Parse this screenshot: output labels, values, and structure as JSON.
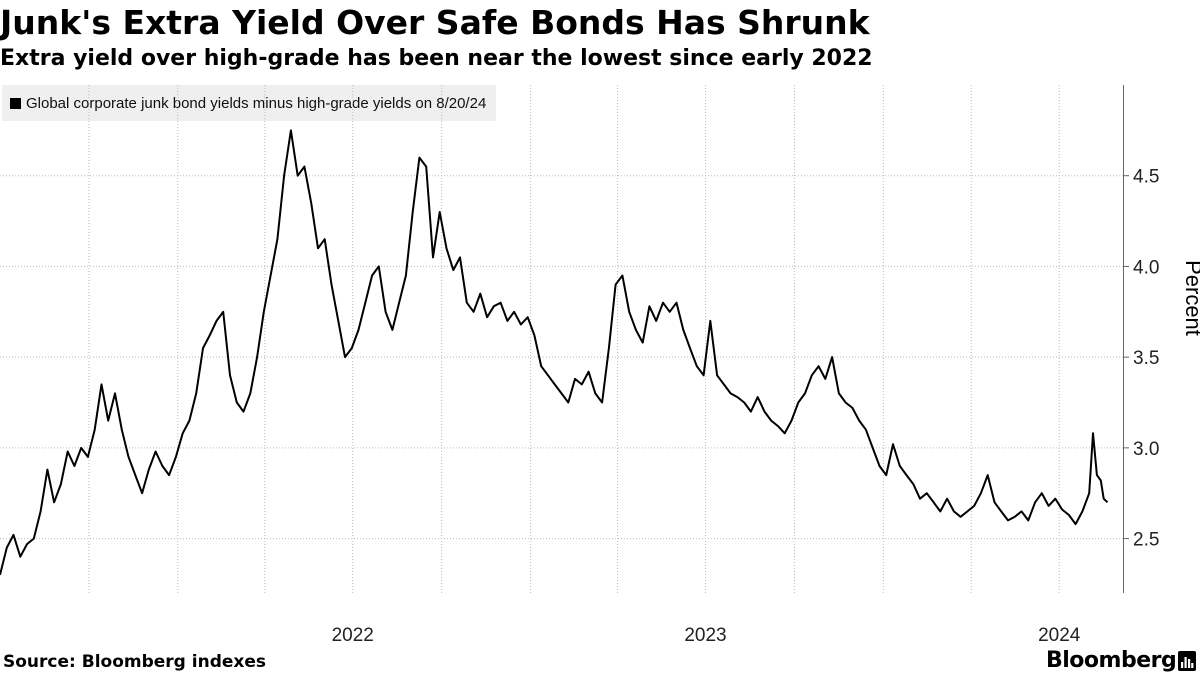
{
  "title": "Junk's Extra Yield Over Safe Bonds Has Shrunk",
  "subtitle": "Extra yield over high-grade has been near the lowest since early 2022",
  "legend_label": "Global corporate junk bond yields minus high-grade yields on 8/20/24",
  "source": "Source: Bloomberg indexes",
  "brand": "Bloomberg",
  "colors": {
    "line": "#000000",
    "grid": "#bbbbbb",
    "legend_bg": "#efefef"
  },
  "chart_data": {
    "type": "line",
    "title": "Junk's Extra Yield Over Safe Bonds Has Shrunk",
    "subtitle": "Extra yield over high-grade has been near the lowest since early 2022",
    "xlabel": "",
    "ylabel": "Percent",
    "ylim": [
      2.2,
      5.0
    ],
    "yticks": [
      2.5,
      3.0,
      3.5,
      4.0,
      4.5
    ],
    "ytick_labels": [
      "2.5",
      "3.0",
      "3.5",
      "4.0",
      "4.5"
    ],
    "xlim": [
      "2021-07-01",
      "2024-09-05"
    ],
    "xtick_labels": [
      "2022",
      "2023",
      "2024"
    ],
    "xtick_centers": [
      "2022-07-01",
      "2023-07-01",
      "2024-07-01"
    ],
    "quarter_gridlines": [
      "2021-10-01",
      "2022-01-01",
      "2022-04-01",
      "2022-07-01",
      "2022-10-01",
      "2023-01-01",
      "2023-04-01",
      "2023-07-01",
      "2023-10-01",
      "2024-01-01",
      "2024-04-01",
      "2024-07-01"
    ],
    "grid": true,
    "legend": "top-left",
    "series": [
      {
        "name": "Global corporate junk bond yields minus high-grade yields on 8/20/24",
        "points": [
          [
            "2021-07-01",
            2.3
          ],
          [
            "2021-07-08",
            2.45
          ],
          [
            "2021-07-15",
            2.52
          ],
          [
            "2021-07-22",
            2.4
          ],
          [
            "2021-07-29",
            2.47
          ],
          [
            "2021-08-05",
            2.5
          ],
          [
            "2021-08-12",
            2.65
          ],
          [
            "2021-08-19",
            2.88
          ],
          [
            "2021-08-26",
            2.7
          ],
          [
            "2021-09-02",
            2.8
          ],
          [
            "2021-09-09",
            2.98
          ],
          [
            "2021-09-16",
            2.9
          ],
          [
            "2021-09-23",
            3.0
          ],
          [
            "2021-09-30",
            2.95
          ],
          [
            "2021-10-07",
            3.1
          ],
          [
            "2021-10-14",
            3.35
          ],
          [
            "2021-10-21",
            3.15
          ],
          [
            "2021-10-28",
            3.3
          ],
          [
            "2021-11-04",
            3.1
          ],
          [
            "2021-11-11",
            2.95
          ],
          [
            "2021-11-18",
            2.85
          ],
          [
            "2021-11-25",
            2.75
          ],
          [
            "2021-12-02",
            2.88
          ],
          [
            "2021-12-09",
            2.98
          ],
          [
            "2021-12-16",
            2.9
          ],
          [
            "2021-12-23",
            2.85
          ],
          [
            "2021-12-30",
            2.95
          ],
          [
            "2022-01-06",
            3.08
          ],
          [
            "2022-01-13",
            3.15
          ],
          [
            "2022-01-20",
            3.3
          ],
          [
            "2022-01-27",
            3.55
          ],
          [
            "2022-02-03",
            3.62
          ],
          [
            "2022-02-10",
            3.7
          ],
          [
            "2022-02-17",
            3.75
          ],
          [
            "2022-02-24",
            3.4
          ],
          [
            "2022-03-03",
            3.25
          ],
          [
            "2022-03-10",
            3.2
          ],
          [
            "2022-03-17",
            3.3
          ],
          [
            "2022-03-24",
            3.5
          ],
          [
            "2022-03-31",
            3.75
          ],
          [
            "2022-04-07",
            3.95
          ],
          [
            "2022-04-14",
            4.15
          ],
          [
            "2022-04-21",
            4.5
          ],
          [
            "2022-04-28",
            4.75
          ],
          [
            "2022-05-05",
            4.5
          ],
          [
            "2022-05-12",
            4.55
          ],
          [
            "2022-05-19",
            4.35
          ],
          [
            "2022-05-26",
            4.1
          ],
          [
            "2022-06-02",
            4.15
          ],
          [
            "2022-06-09",
            3.9
          ],
          [
            "2022-06-16",
            3.7
          ],
          [
            "2022-06-23",
            3.5
          ],
          [
            "2022-06-30",
            3.55
          ],
          [
            "2022-07-07",
            3.65
          ],
          [
            "2022-07-14",
            3.8
          ],
          [
            "2022-07-21",
            3.95
          ],
          [
            "2022-07-28",
            4.0
          ],
          [
            "2022-08-04",
            3.75
          ],
          [
            "2022-08-11",
            3.65
          ],
          [
            "2022-08-18",
            3.8
          ],
          [
            "2022-08-25",
            3.95
          ],
          [
            "2022-09-01",
            4.3
          ],
          [
            "2022-09-08",
            4.6
          ],
          [
            "2022-09-15",
            4.55
          ],
          [
            "2022-09-22",
            4.05
          ],
          [
            "2022-09-29",
            4.3
          ],
          [
            "2022-10-06",
            4.1
          ],
          [
            "2022-10-13",
            3.98
          ],
          [
            "2022-10-20",
            4.05
          ],
          [
            "2022-10-27",
            3.8
          ],
          [
            "2022-11-03",
            3.75
          ],
          [
            "2022-11-10",
            3.85
          ],
          [
            "2022-11-17",
            3.72
          ],
          [
            "2022-11-24",
            3.78
          ],
          [
            "2022-12-01",
            3.8
          ],
          [
            "2022-12-08",
            3.7
          ],
          [
            "2022-12-15",
            3.75
          ],
          [
            "2022-12-22",
            3.68
          ],
          [
            "2022-12-29",
            3.72
          ],
          [
            "2023-01-05",
            3.62
          ],
          [
            "2023-01-12",
            3.45
          ],
          [
            "2023-01-19",
            3.4
          ],
          [
            "2023-01-26",
            3.35
          ],
          [
            "2023-02-02",
            3.3
          ],
          [
            "2023-02-09",
            3.25
          ],
          [
            "2023-02-16",
            3.38
          ],
          [
            "2023-02-23",
            3.35
          ],
          [
            "2023-03-02",
            3.42
          ],
          [
            "2023-03-09",
            3.3
          ],
          [
            "2023-03-16",
            3.25
          ],
          [
            "2023-03-23",
            3.55
          ],
          [
            "2023-03-30",
            3.9
          ],
          [
            "2023-04-06",
            3.95
          ],
          [
            "2023-04-13",
            3.75
          ],
          [
            "2023-04-20",
            3.65
          ],
          [
            "2023-04-27",
            3.58
          ],
          [
            "2023-05-04",
            3.78
          ],
          [
            "2023-05-11",
            3.7
          ],
          [
            "2023-05-18",
            3.8
          ],
          [
            "2023-05-25",
            3.75
          ],
          [
            "2023-06-01",
            3.8
          ],
          [
            "2023-06-08",
            3.65
          ],
          [
            "2023-06-15",
            3.55
          ],
          [
            "2023-06-22",
            3.45
          ],
          [
            "2023-06-29",
            3.4
          ],
          [
            "2023-07-06",
            3.7
          ],
          [
            "2023-07-13",
            3.4
          ],
          [
            "2023-07-20",
            3.35
          ],
          [
            "2023-07-27",
            3.3
          ],
          [
            "2023-08-03",
            3.28
          ],
          [
            "2023-08-10",
            3.25
          ],
          [
            "2023-08-17",
            3.2
          ],
          [
            "2023-08-24",
            3.28
          ],
          [
            "2023-08-31",
            3.2
          ],
          [
            "2023-09-07",
            3.15
          ],
          [
            "2023-09-14",
            3.12
          ],
          [
            "2023-09-21",
            3.08
          ],
          [
            "2023-09-28",
            3.15
          ],
          [
            "2023-10-05",
            3.25
          ],
          [
            "2023-10-12",
            3.3
          ],
          [
            "2023-10-19",
            3.4
          ],
          [
            "2023-10-26",
            3.45
          ],
          [
            "2023-11-02",
            3.38
          ],
          [
            "2023-11-09",
            3.5
          ],
          [
            "2023-11-16",
            3.3
          ],
          [
            "2023-11-23",
            3.25
          ],
          [
            "2023-11-30",
            3.22
          ],
          [
            "2023-12-07",
            3.15
          ],
          [
            "2023-12-14",
            3.1
          ],
          [
            "2023-12-21",
            3.0
          ],
          [
            "2023-12-28",
            2.9
          ],
          [
            "2024-01-04",
            2.85
          ],
          [
            "2024-01-11",
            3.02
          ],
          [
            "2024-01-18",
            2.9
          ],
          [
            "2024-01-25",
            2.85
          ],
          [
            "2024-02-01",
            2.8
          ],
          [
            "2024-02-08",
            2.72
          ],
          [
            "2024-02-15",
            2.75
          ],
          [
            "2024-02-22",
            2.7
          ],
          [
            "2024-02-29",
            2.65
          ],
          [
            "2024-03-07",
            2.72
          ],
          [
            "2024-03-14",
            2.65
          ],
          [
            "2024-03-21",
            2.62
          ],
          [
            "2024-03-28",
            2.65
          ],
          [
            "2024-04-04",
            2.68
          ],
          [
            "2024-04-11",
            2.75
          ],
          [
            "2024-04-18",
            2.85
          ],
          [
            "2024-04-25",
            2.7
          ],
          [
            "2024-05-02",
            2.65
          ],
          [
            "2024-05-09",
            2.6
          ],
          [
            "2024-05-16",
            2.62
          ],
          [
            "2024-05-23",
            2.65
          ],
          [
            "2024-05-30",
            2.6
          ],
          [
            "2024-06-06",
            2.7
          ],
          [
            "2024-06-13",
            2.75
          ],
          [
            "2024-06-20",
            2.68
          ],
          [
            "2024-06-27",
            2.72
          ],
          [
            "2024-07-04",
            2.66
          ],
          [
            "2024-07-11",
            2.63
          ],
          [
            "2024-07-18",
            2.58
          ],
          [
            "2024-07-25",
            2.65
          ],
          [
            "2024-08-01",
            2.75
          ],
          [
            "2024-08-05",
            3.08
          ],
          [
            "2024-08-09",
            2.85
          ],
          [
            "2024-08-13",
            2.82
          ],
          [
            "2024-08-16",
            2.72
          ],
          [
            "2024-08-20",
            2.7
          ]
        ]
      }
    ]
  }
}
